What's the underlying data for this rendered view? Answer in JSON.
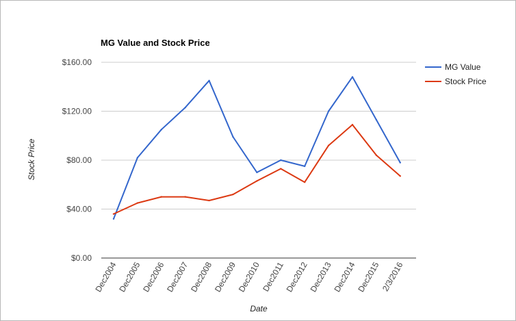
{
  "chart_data": {
    "type": "line",
    "title": "MG Value and Stock Price",
    "xlabel": "Date",
    "ylabel": "Stock Price",
    "categories": [
      "Dec2004",
      "Dec2005",
      "Dec2006",
      "Dec2007",
      "Dec2008",
      "Dec2009",
      "Dec2010",
      "Dec2011",
      "Dec2012",
      "Dec2013",
      "Dec2014",
      "Dec2015",
      "2/3/2016"
    ],
    "ylim": [
      0,
      160
    ],
    "yticks": [
      0,
      40,
      80,
      120,
      160
    ],
    "ytick_labels": [
      "$0.00",
      "$40.00",
      "$80.00",
      "$120.00",
      "$160.00"
    ],
    "grid": true,
    "legend_position": "right",
    "series": [
      {
        "name": "MG Value",
        "color": "#3366cc",
        "values": [
          32,
          82,
          105,
          123,
          145,
          99,
          70,
          80,
          75,
          120,
          148,
          113,
          78
        ]
      },
      {
        "name": "Stock Price",
        "color": "#dc3912",
        "values": [
          36,
          45,
          50,
          50,
          47,
          52,
          63,
          73,
          62,
          92,
          109,
          84,
          67
        ]
      }
    ]
  }
}
